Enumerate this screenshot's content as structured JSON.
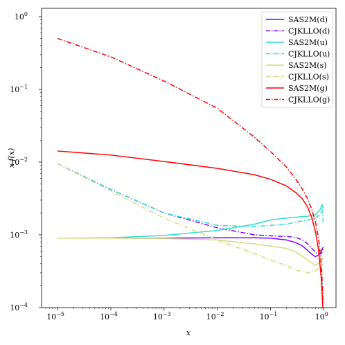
{
  "chart_data": {
    "type": "line",
    "xlabel": "x",
    "ylabel": "x f(x)",
    "x_scale": "log",
    "y_scale": "log",
    "xlim": [
      5e-06,
      1.7
    ],
    "ylim": [
      0.0001,
      1.3
    ],
    "grid": false,
    "legend_position": "top-right",
    "x_ticks": [
      {
        "value": 1e-05,
        "base": "10",
        "exp": "−5"
      },
      {
        "value": 0.0001,
        "base": "10",
        "exp": "−4"
      },
      {
        "value": 0.001,
        "base": "10",
        "exp": "−3"
      },
      {
        "value": 0.01,
        "base": "10",
        "exp": "−2"
      },
      {
        "value": 0.1,
        "base": "10",
        "exp": "−1"
      },
      {
        "value": 1,
        "base": "10",
        "exp": "0"
      }
    ],
    "y_ticks": [
      {
        "value": 0.0001,
        "base": "10",
        "exp": "−4"
      },
      {
        "value": 0.001,
        "base": "10",
        "exp": "−3"
      },
      {
        "value": 0.01,
        "base": "10",
        "exp": "−2"
      },
      {
        "value": 0.1,
        "base": "10",
        "exp": "−1"
      },
      {
        "value": 1,
        "base": "10",
        "exp": "0"
      }
    ],
    "series": [
      {
        "name": "SAS2M(d)",
        "color": "#8000ff",
        "dash": "solid",
        "x": [
          1e-05,
          0.0001,
          0.001,
          0.01,
          0.05,
          0.1,
          0.2,
          0.3,
          0.4,
          0.5,
          0.6,
          0.7,
          0.8,
          0.9,
          0.95,
          0.98
        ],
        "y": [
          0.0009,
          0.0009,
          0.0009,
          0.00091,
          0.00091,
          0.0009,
          0.00085,
          0.00078,
          0.0007,
          0.00061,
          0.00054,
          0.0005,
          0.00053,
          0.0006,
          0.00065,
          0.00068
        ]
      },
      {
        "name": "CJKLLO(d)",
        "color": "#8000ff",
        "dash": "dashdot",
        "x": [
          1e-05,
          0.0001,
          0.001,
          0.01,
          0.05,
          0.1,
          0.2,
          0.3,
          0.4,
          0.5,
          0.6,
          0.7,
          0.8,
          0.9,
          0.95,
          0.98
        ],
        "y": [
          0.0095,
          0.0042,
          0.002,
          0.00125,
          0.001,
          0.00097,
          0.00095,
          0.00092,
          0.00085,
          0.00075,
          0.00065,
          0.00058,
          0.00054,
          0.00055,
          0.0006,
          0.00065
        ]
      },
      {
        "name": "SAS2M(u)",
        "color": "#30dcd5",
        "dash": "solid",
        "x": [
          1e-05,
          0.0001,
          0.001,
          0.01,
          0.05,
          0.1,
          0.2,
          0.3,
          0.5,
          0.7,
          0.85,
          0.93,
          0.98
        ],
        "y": [
          0.0009,
          0.00091,
          0.00098,
          0.00115,
          0.0014,
          0.0016,
          0.0017,
          0.00175,
          0.0018,
          0.0019,
          0.0022,
          0.0026,
          0.0023
        ]
      },
      {
        "name": "CJKLLO(u)",
        "color": "#30dcd5",
        "dash": "dashdot",
        "x": [
          1e-05,
          0.0001,
          0.001,
          0.01,
          0.05,
          0.1,
          0.2,
          0.3,
          0.5,
          0.7,
          0.85,
          0.93,
          0.98
        ],
        "y": [
          0.0095,
          0.0042,
          0.002,
          0.00135,
          0.0013,
          0.00135,
          0.0014,
          0.0015,
          0.0016,
          0.0017,
          0.0019,
          0.0022,
          0.0015
        ]
      },
      {
        "name": "SAS2M(s)",
        "color": "#d4dc7f",
        "dash": "solid",
        "x": [
          1e-05,
          0.0001,
          0.001,
          0.01,
          0.05,
          0.1,
          0.2,
          0.3,
          0.5,
          0.7,
          0.85,
          0.93,
          0.98
        ],
        "y": [
          0.0009,
          0.0009,
          0.00089,
          0.00085,
          0.00075,
          0.0007,
          0.00065,
          0.00058,
          0.00045,
          0.00038,
          0.00042,
          0.00048,
          0.00045
        ]
      },
      {
        "name": "CJKLLO(s)",
        "color": "#d4dc7f",
        "dash": "dashdot",
        "x": [
          1e-05,
          0.0001,
          0.001,
          0.01,
          0.05,
          0.1,
          0.2,
          0.3,
          0.5,
          0.7,
          0.85,
          0.93,
          0.98
        ],
        "y": [
          0.0095,
          0.004,
          0.0017,
          0.00085,
          0.00055,
          0.00045,
          0.00038,
          0.00033,
          0.0003,
          0.00032,
          0.00036,
          0.0004,
          0.00038
        ]
      },
      {
        "name": "SAS2M(g)",
        "color": "#ff0000",
        "dash": "solid",
        "x": [
          1e-05,
          0.0001,
          0.001,
          0.01,
          0.05,
          0.1,
          0.2,
          0.3,
          0.4,
          0.5,
          0.6,
          0.7,
          0.8,
          0.9,
          0.95,
          0.97
        ],
        "y": [
          0.0142,
          0.0125,
          0.0102,
          0.0082,
          0.0067,
          0.0058,
          0.0047,
          0.0038,
          0.0031,
          0.0024,
          0.0017,
          0.0011,
          0.00062,
          0.00025,
          0.00012,
          9e-05
        ]
      },
      {
        "name": "CJKLLO(g)",
        "color": "#ff0000",
        "dash": "dashdot",
        "x": [
          1e-05,
          0.0001,
          0.001,
          0.01,
          0.05,
          0.1,
          0.2,
          0.3,
          0.4,
          0.5,
          0.6,
          0.7,
          0.8,
          0.9,
          0.95,
          0.97
        ],
        "y": [
          0.5,
          0.28,
          0.13,
          0.055,
          0.022,
          0.014,
          0.0085,
          0.0058,
          0.0042,
          0.0031,
          0.0022,
          0.0015,
          0.0009,
          0.0004,
          0.00018,
          0.00011
        ]
      }
    ]
  }
}
